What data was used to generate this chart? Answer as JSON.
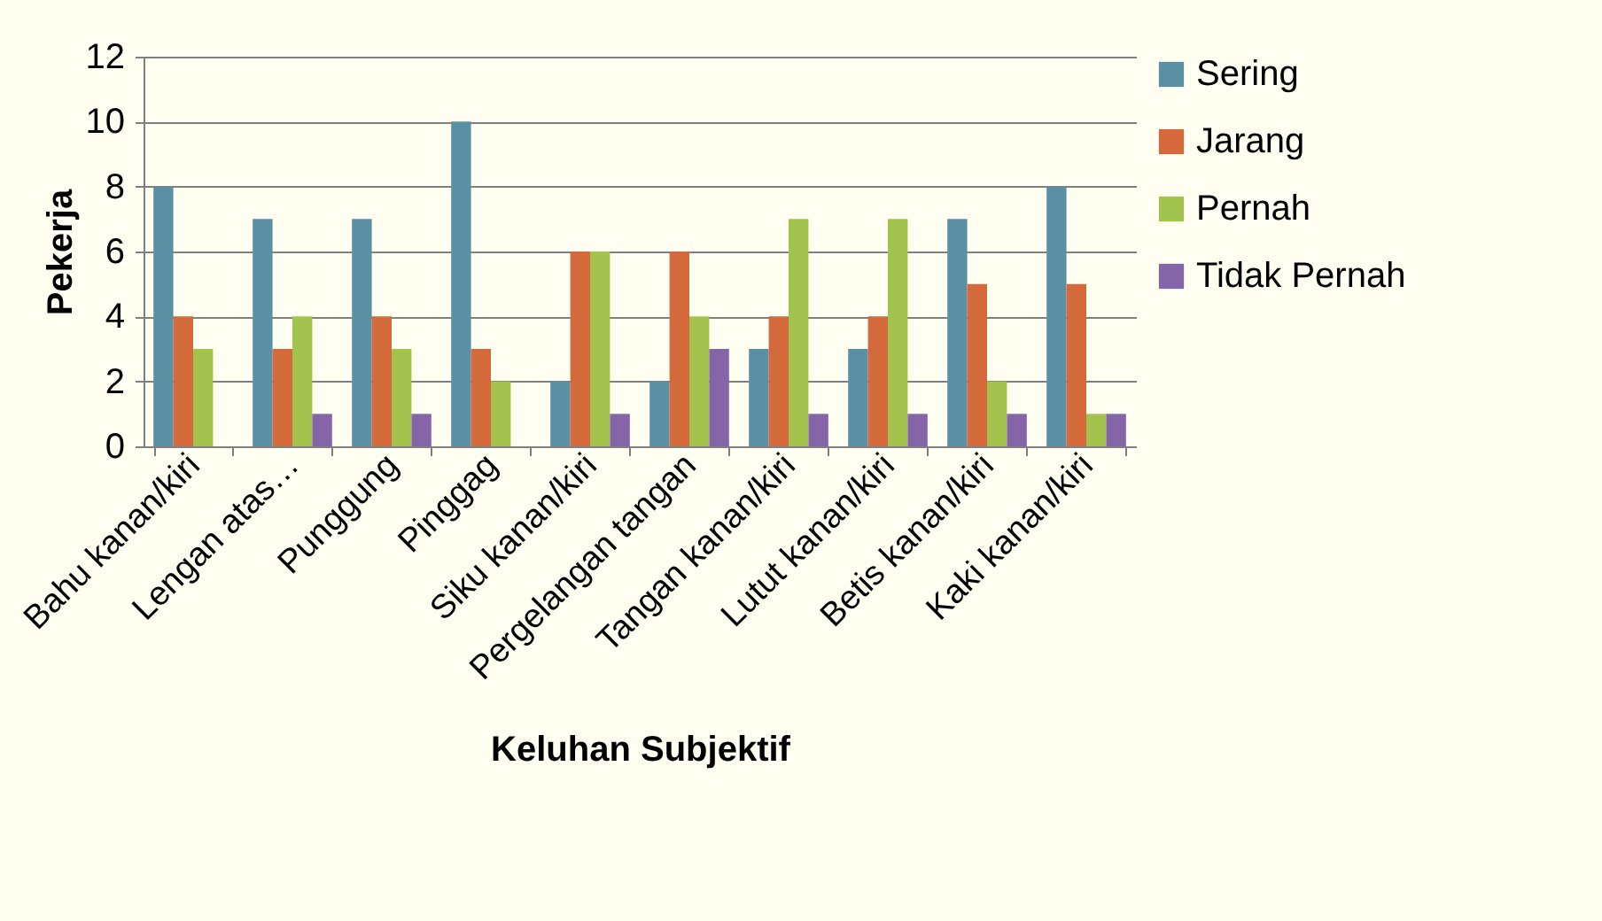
{
  "chart_data": {
    "type": "bar",
    "xlabel": "Keluhan Subjektif",
    "ylabel": "Pekerja",
    "categories": [
      "Bahu kanan/kiri",
      "Lengan atas…",
      "Punggung",
      "Pinggag",
      "Siku kanan/kiri",
      "Pergelangan tangan",
      "Tangan kanan/kiri",
      "Lutut kanan/kiri",
      "Betis kanan/kiri",
      "Kaki kanan/kiri"
    ],
    "series": [
      {
        "name": "Sering",
        "color": "#5b8fa3",
        "values": [
          8,
          7,
          7,
          10,
          2,
          2,
          3,
          3,
          7,
          8
        ]
      },
      {
        "name": "Jarang",
        "color": "#d46a3c",
        "values": [
          4,
          3,
          4,
          3,
          6,
          6,
          4,
          4,
          5,
          5
        ]
      },
      {
        "name": "Pernah",
        "color": "#a2c44f",
        "values": [
          3,
          4,
          3,
          2,
          6,
          4,
          7,
          7,
          2,
          1
        ]
      },
      {
        "name": "Tidak Pernah",
        "color": "#8466a8",
        "values": [
          0,
          1,
          1,
          0,
          1,
          3,
          1,
          1,
          1,
          1
        ]
      }
    ],
    "ylim": [
      0,
      12
    ],
    "yticks": [
      0,
      2,
      4,
      6,
      8,
      10,
      12
    ],
    "grid": "y",
    "legend": "right"
  }
}
